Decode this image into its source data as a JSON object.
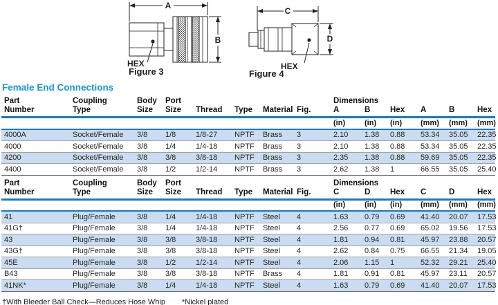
{
  "figures": {
    "fig3": {
      "caption": "Figure 3",
      "dim_length": "A",
      "dim_height": "B",
      "hex_label": "HEX"
    },
    "fig4": {
      "caption": "Figure 4",
      "dim_length": "C",
      "dim_height": "D",
      "hex_label": "HEX"
    }
  },
  "section_title": "Female End Connections",
  "tables": [
    {
      "columns": [
        {
          "top": "Part",
          "bottom": "Number",
          "unit": ""
        },
        {
          "top": "Coupling",
          "bottom": "Type",
          "unit": ""
        },
        {
          "top": "Body",
          "bottom": "Size",
          "unit": ""
        },
        {
          "top": "Port",
          "bottom": "Size",
          "unit": ""
        },
        {
          "top": "",
          "bottom": "Thread",
          "unit": ""
        },
        {
          "top": "",
          "bottom": "Type",
          "unit": ""
        },
        {
          "top": "",
          "bottom": "Material",
          "unit": ""
        },
        {
          "top": "",
          "bottom": "Fig.",
          "unit": ""
        },
        {
          "top": "Dimensions",
          "bottom": "A",
          "unit": "(in)"
        },
        {
          "top": "",
          "bottom": "B",
          "unit": "(in)"
        },
        {
          "top": "",
          "bottom": "Hex",
          "unit": "(in)"
        },
        {
          "top": "",
          "bottom": "A",
          "unit": "(mm)"
        },
        {
          "top": "",
          "bottom": "B",
          "unit": "(mm)"
        },
        {
          "top": "",
          "bottom": "Hex",
          "unit": "(mm)"
        }
      ],
      "rows": [
        [
          "4000A",
          "Socket/Female",
          "3/8",
          "1/8",
          "1/8-27",
          "NPTF",
          "Brass",
          "3",
          "2.10",
          "1.38",
          "0.88",
          "53.34",
          "35.05",
          "22.35"
        ],
        [
          "4000",
          "Socket/Female",
          "3/8",
          "1/4",
          "1/4-18",
          "NPTF",
          "Brass",
          "3",
          "2.10",
          "1.38",
          "0.88",
          "53.34",
          "35.05",
          "22.35"
        ],
        [
          "4200",
          "Socket/Female",
          "3/8",
          "3/8",
          "3/8-18",
          "NPTF",
          "Brass",
          "3",
          "2.35",
          "1.38",
          "0.88",
          "59.69",
          "35.05",
          "22.35"
        ],
        [
          "4400",
          "Socket/Female",
          "3/8",
          "1/2",
          "1/2-14",
          "NPTF",
          "Brass",
          "3",
          "2.62",
          "1.38",
          "1",
          "66.55",
          "35.05",
          "25.40"
        ]
      ]
    },
    {
      "columns": [
        {
          "top": "Part",
          "bottom": "Number",
          "unit": ""
        },
        {
          "top": "Coupling",
          "bottom": "Type",
          "unit": ""
        },
        {
          "top": "Body",
          "bottom": "Size",
          "unit": ""
        },
        {
          "top": "Port",
          "bottom": "Size",
          "unit": ""
        },
        {
          "top": "",
          "bottom": "Thread",
          "unit": ""
        },
        {
          "top": "",
          "bottom": "Type",
          "unit": ""
        },
        {
          "top": "",
          "bottom": "Material",
          "unit": ""
        },
        {
          "top": "",
          "bottom": "Fig.",
          "unit": ""
        },
        {
          "top": "Dimensions",
          "bottom": "C",
          "unit": "(in)"
        },
        {
          "top": "",
          "bottom": "D",
          "unit": "(in)"
        },
        {
          "top": "",
          "bottom": "Hex",
          "unit": "(in)"
        },
        {
          "top": "",
          "bottom": "C",
          "unit": "(mm)"
        },
        {
          "top": "",
          "bottom": "D",
          "unit": "(mm)"
        },
        {
          "top": "",
          "bottom": "Hex",
          "unit": "(mm)"
        }
      ],
      "rows": [
        [
          "41",
          "Plug/Female",
          "3/8",
          "1/4",
          "1/4-18",
          "NPTF",
          "Steel",
          "4",
          "1.63",
          "0.79",
          "0.69",
          "41.40",
          "20.07",
          "17.53"
        ],
        [
          "41G†",
          "Plug/Female",
          "3/8",
          "1/4",
          "1/4-18",
          "NPTF",
          "Steel",
          "4",
          "2.56",
          "0.77",
          "0.69",
          "65.02",
          "19.56",
          "17.53"
        ],
        [
          "43",
          "Plug/Female",
          "3/8",
          "3/8",
          "3/8-18",
          "NPTF",
          "Steel",
          "4",
          "1.81",
          "0.94",
          "0.81",
          "45.97",
          "23.88",
          "20.57"
        ],
        [
          "43G†",
          "Plug/Female",
          "3/8",
          "3/8",
          "3/8-18",
          "NPTF",
          "Steel",
          "4",
          "2.62",
          "0.84",
          "0.75",
          "66.55",
          "21.34",
          "19.05"
        ],
        [
          "45E",
          "Plug/Female",
          "3/8",
          "1/2",
          "1/2-14",
          "NPTF",
          "Steel",
          "4",
          "2.06",
          "1.15",
          "1",
          "52.32",
          "29.21",
          "25.40"
        ],
        [
          "B43",
          "Plug/Female",
          "3/8",
          "3/8",
          "3/8-18",
          "NPTF",
          "Brass",
          "4",
          "1.81",
          "0.91",
          "0.81",
          "45.97",
          "23.11",
          "20.57"
        ],
        [
          "41NK*",
          "Plug/Female",
          "3/8",
          "1/4",
          "1/4-18",
          "NPTF",
          "Steel",
          "4",
          "1.63",
          "0.79",
          "0.69",
          "41.40",
          "20.07",
          "17.53"
        ]
      ]
    }
  ],
  "footnotes": {
    "dagger": "†With Bleeder Ball Check—Reduces Hose Whip",
    "asterisk": "*Nickel plated"
  },
  "colors": {
    "title_blue": "#1898d5",
    "rule_blue": "#1779be",
    "row_highlight": "#c9dcf1"
  }
}
